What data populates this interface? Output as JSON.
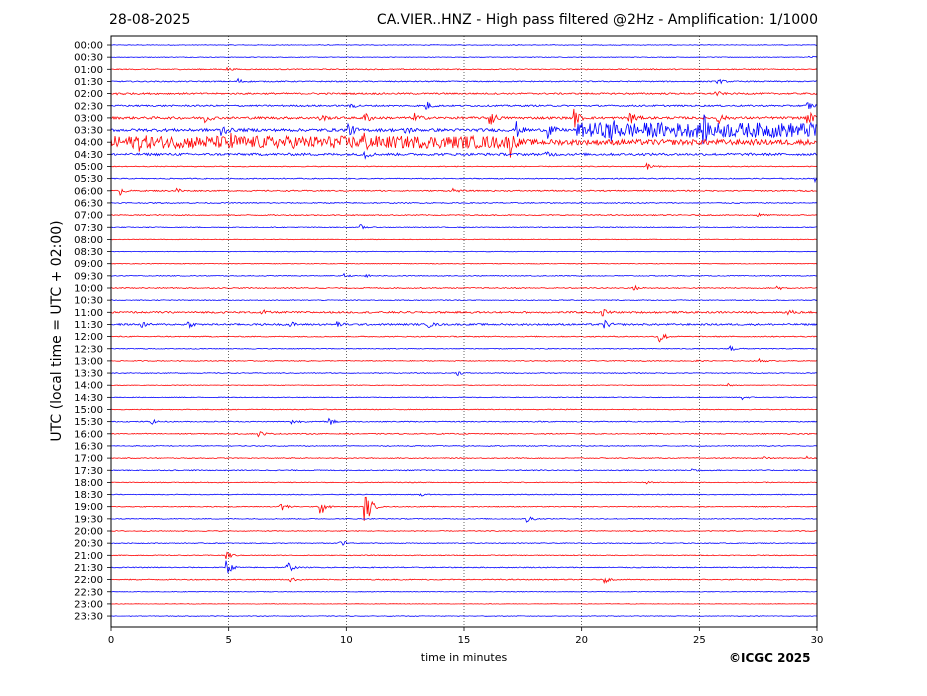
{
  "header": {
    "date": "28-08-2025",
    "title": "CA.VIER..HNZ - High pass filtered @2Hz - Amplification: 1/1000"
  },
  "footer": {
    "copyright": "©ICGC 2025"
  },
  "colors": {
    "red_trace": "#ff0000",
    "blue_trace": "#0000ff",
    "grid": "#000000"
  },
  "chart_data": {
    "type": "line",
    "title": "CA.VIER..HNZ - High pass filtered @2Hz - Amplification: 1/1000",
    "xlabel": "time in minutes",
    "ylabel": "UTC (local time = UTC + 02:00)",
    "xlim": [
      0,
      30
    ],
    "x_ticks": [
      "0",
      "5",
      "10",
      "15",
      "20",
      "25",
      "30"
    ],
    "vertical_gridlines_at": [
      5,
      10,
      15,
      20,
      25
    ],
    "rows": [
      "00:00",
      "00:30",
      "01:00",
      "01:30",
      "02:00",
      "02:30",
      "03:00",
      "03:30",
      "04:00",
      "04:30",
      "05:00",
      "05:30",
      "06:00",
      "06:30",
      "07:00",
      "07:30",
      "08:00",
      "08:30",
      "09:00",
      "09:30",
      "10:00",
      "10:30",
      "11:00",
      "11:30",
      "12:00",
      "12:30",
      "13:00",
      "13:30",
      "14:00",
      "14:30",
      "15:00",
      "15:30",
      "16:00",
      "16:30",
      "17:00",
      "17:30",
      "18:00",
      "18:30",
      "19:00",
      "19:30",
      "20:00",
      "20:30",
      "21:00",
      "21:30",
      "22:00",
      "22:30",
      "23:00",
      "23:30"
    ],
    "row_colors": [
      "blue",
      "blue",
      "red",
      "blue",
      "red",
      "blue",
      "red",
      "blue",
      "red",
      "blue",
      "red",
      "blue",
      "red",
      "blue",
      "red",
      "blue",
      "red",
      "blue",
      "red",
      "blue",
      "red",
      "blue",
      "red",
      "blue",
      "red",
      "blue",
      "red",
      "blue",
      "red",
      "blue",
      "red",
      "blue",
      "red",
      "blue",
      "red",
      "blue",
      "red",
      "blue",
      "red",
      "blue",
      "red",
      "blue",
      "red",
      "blue",
      "red",
      "blue",
      "red",
      "blue"
    ],
    "noise_level": [
      0.3,
      0.3,
      0.5,
      0.6,
      0.8,
      0.8,
      1.2,
      1.5,
      2.8,
      1.2,
      0.4,
      0.5,
      0.6,
      0.5,
      0.5,
      0.4,
      0.3,
      0.3,
      0.3,
      0.4,
      0.5,
      0.4,
      0.9,
      0.9,
      0.5,
      0.4,
      0.4,
      0.4,
      0.3,
      0.4,
      0.4,
      0.5,
      0.5,
      0.4,
      0.4,
      0.5,
      0.4,
      0.4,
      0.4,
      0.4,
      0.4,
      0.4,
      0.4,
      0.5,
      0.5,
      0.3,
      0.2,
      0.3
    ],
    "events": [
      {
        "row": "00:30",
        "t": 29.7,
        "amp": 2
      },
      {
        "row": "01:00",
        "t": 4.9,
        "amp": 2
      },
      {
        "row": "01:30",
        "t": 5.4,
        "amp": 3
      },
      {
        "row": "01:30",
        "t": 25.8,
        "amp": 3
      },
      {
        "row": "01:30",
        "t": 29.9,
        "amp": 2
      },
      {
        "row": "02:00",
        "t": 0.3,
        "amp": 3
      },
      {
        "row": "02:00",
        "t": 25.7,
        "amp": 3
      },
      {
        "row": "02:30",
        "t": 13.4,
        "amp": 5
      },
      {
        "row": "02:30",
        "t": 10.2,
        "amp": 3
      },
      {
        "row": "02:30",
        "t": 29.6,
        "amp": 5
      },
      {
        "row": "03:00",
        "t": 4.0,
        "amp": 5
      },
      {
        "row": "03:00",
        "t": 8.9,
        "amp": 4
      },
      {
        "row": "03:00",
        "t": 10.8,
        "amp": 6
      },
      {
        "row": "03:00",
        "t": 12.9,
        "amp": 5
      },
      {
        "row": "03:00",
        "t": 16.1,
        "amp": 10
      },
      {
        "row": "03:00",
        "t": 19.7,
        "amp": 10
      },
      {
        "row": "03:00",
        "t": 22.0,
        "amp": 12
      },
      {
        "row": "03:00",
        "t": 25.8,
        "amp": 6
      },
      {
        "row": "03:00",
        "t": 29.6,
        "amp": 10
      },
      {
        "row": "03:30",
        "t": 4.7,
        "amp": 7
      },
      {
        "row": "03:30",
        "t": 10.1,
        "amp": 8
      },
      {
        "row": "03:30",
        "t": 12.5,
        "amp": 5
      },
      {
        "row": "03:30",
        "t": 17.2,
        "amp": 9
      },
      {
        "row": "03:30",
        "t": 18.6,
        "amp": 8
      },
      {
        "row": "03:30",
        "t": 21.2,
        "amp": 9
      },
      {
        "row": "03:30",
        "t": 25.2,
        "amp": 8
      },
      {
        "row": "03:30",
        "t": 29.8,
        "amp": 7
      },
      {
        "row": "04:00",
        "t": 1.1,
        "amp": 6
      },
      {
        "row": "04:00",
        "t": 5.0,
        "amp": 7
      },
      {
        "row": "04:00",
        "t": 10.7,
        "amp": 7
      },
      {
        "row": "04:00",
        "t": 17.0,
        "amp": 10
      },
      {
        "row": "04:30",
        "t": 10.8,
        "amp": 4
      },
      {
        "row": "04:30",
        "t": 18.5,
        "amp": 4
      },
      {
        "row": "05:00",
        "t": 22.8,
        "amp": 5
      },
      {
        "row": "05:30",
        "t": 29.9,
        "amp": 3
      },
      {
        "row": "06:00",
        "t": 0.4,
        "amp": 4
      },
      {
        "row": "06:00",
        "t": 2.8,
        "amp": 3
      },
      {
        "row": "06:00",
        "t": 14.5,
        "amp": 3
      },
      {
        "row": "07:00",
        "t": 27.5,
        "amp": 2
      },
      {
        "row": "07:30",
        "t": 10.6,
        "amp": 3
      },
      {
        "row": "09:30",
        "t": 9.9,
        "amp": 2
      },
      {
        "row": "09:30",
        "t": 10.8,
        "amp": 2
      },
      {
        "row": "10:00",
        "t": 22.2,
        "amp": 3
      },
      {
        "row": "10:00",
        "t": 28.3,
        "amp": 3
      },
      {
        "row": "11:00",
        "t": 6.4,
        "amp": 3
      },
      {
        "row": "11:00",
        "t": 20.9,
        "amp": 4
      },
      {
        "row": "11:00",
        "t": 28.8,
        "amp": 3
      },
      {
        "row": "11:30",
        "t": 1.3,
        "amp": 3
      },
      {
        "row": "11:30",
        "t": 3.3,
        "amp": 3
      },
      {
        "row": "11:30",
        "t": 7.6,
        "amp": 3
      },
      {
        "row": "11:30",
        "t": 9.6,
        "amp": 3
      },
      {
        "row": "11:30",
        "t": 13.5,
        "amp": 3
      },
      {
        "row": "11:30",
        "t": 21.0,
        "amp": 4
      },
      {
        "row": "12:00",
        "t": 23.3,
        "amp": 10
      },
      {
        "row": "12:30",
        "t": 26.3,
        "amp": 4
      },
      {
        "row": "13:00",
        "t": 24.7,
        "amp": 3
      },
      {
        "row": "13:00",
        "t": 27.6,
        "amp": 2
      },
      {
        "row": "13:30",
        "t": 14.7,
        "amp": 3
      },
      {
        "row": "14:00",
        "t": 26.2,
        "amp": 2
      },
      {
        "row": "14:30",
        "t": 26.8,
        "amp": 3
      },
      {
        "row": "15:30",
        "t": 1.7,
        "amp": 3
      },
      {
        "row": "15:30",
        "t": 7.7,
        "amp": 4
      },
      {
        "row": "15:30",
        "t": 9.3,
        "amp": 4
      },
      {
        "row": "16:00",
        "t": 6.3,
        "amp": 3
      },
      {
        "row": "17:00",
        "t": 27.7,
        "amp": 2
      },
      {
        "row": "17:00",
        "t": 29.6,
        "amp": 2
      },
      {
        "row": "17:30",
        "t": 24.7,
        "amp": 3
      },
      {
        "row": "18:00",
        "t": 22.8,
        "amp": 2
      },
      {
        "row": "18:30",
        "t": 13.1,
        "amp": 2
      },
      {
        "row": "19:00",
        "t": 7.2,
        "amp": 8
      },
      {
        "row": "19:00",
        "t": 8.9,
        "amp": 12
      },
      {
        "row": "19:00",
        "t": 10.8,
        "amp": 14
      },
      {
        "row": "19:00",
        "t": 11.0,
        "amp": 5
      },
      {
        "row": "19:30",
        "t": 17.7,
        "amp": 5
      },
      {
        "row": "20:30",
        "t": 9.7,
        "amp": 7
      },
      {
        "row": "21:00",
        "t": 4.9,
        "amp": 6
      },
      {
        "row": "21:30",
        "t": 4.9,
        "amp": 10
      },
      {
        "row": "21:30",
        "t": 7.5,
        "amp": 7
      },
      {
        "row": "22:00",
        "t": 7.6,
        "amp": 3
      },
      {
        "row": "22:00",
        "t": 21.0,
        "amp": 3
      }
    ],
    "sustained_bursts": [
      {
        "row": "03:30",
        "from": 19.8,
        "to": 30.0,
        "amp": 6
      },
      {
        "row": "04:00",
        "from": 0.0,
        "to": 17.0,
        "amp": 3.5
      }
    ],
    "grid": true
  }
}
